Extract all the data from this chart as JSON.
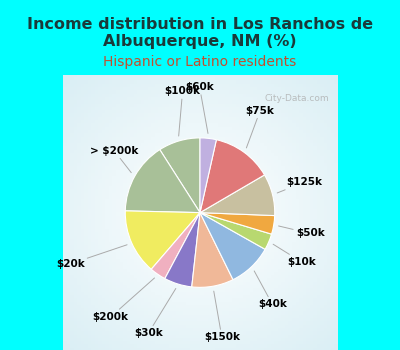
{
  "title": "Income distribution in Los Ranchos de\nAlbuquerque, NM (%)",
  "subtitle": "Hispanic or Latino residents",
  "title_color": "#1a3a3a",
  "subtitle_color": "#c05030",
  "bg_outer": "#00ffff",
  "watermark": "City-Data.com",
  "labels": [
    "$100k",
    "> $200k",
    "$20k",
    "$200k",
    "$30k",
    "$150k",
    "$40k",
    "$10k",
    "$50k",
    "$125k",
    "$75k",
    "$60k"
  ],
  "sizes": [
    9.0,
    15.5,
    14.0,
    3.5,
    6.0,
    9.0,
    9.5,
    3.5,
    4.0,
    9.0,
    13.0,
    3.5
  ],
  "colors": [
    "#a8c098",
    "#a8c098",
    "#f0ec60",
    "#f0b0c0",
    "#8878c8",
    "#f0b898",
    "#90b8e0",
    "#b8d870",
    "#f0a840",
    "#c8c0a0",
    "#e07878",
    "#c0b0e0"
  ],
  "label_fontsize": 7.5,
  "title_fontsize": 11.5,
  "subtitle_fontsize": 10,
  "wedge_edge_color": "white",
  "wedge_edge_width": 0.8
}
